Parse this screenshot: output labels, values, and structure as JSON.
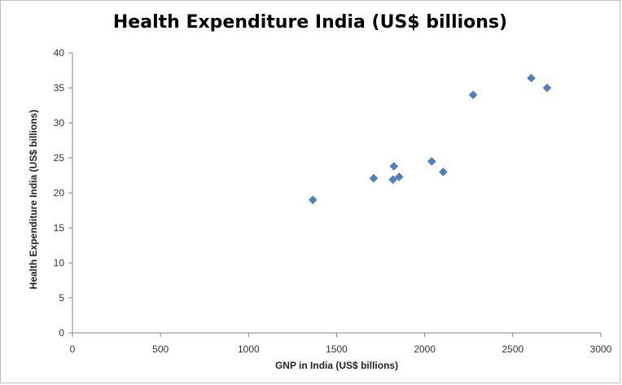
{
  "chart_data": {
    "type": "scatter",
    "title": "Health Expenditure India (US$ billions)",
    "xlabel": "GNP in India (US$ billions)",
    "ylabel": "Health Expenditure India (US$ billions)",
    "xlim": [
      0,
      3000
    ],
    "ylim": [
      0,
      40
    ],
    "xticks": [
      "0",
      "500",
      "1000",
      "1500",
      "2000",
      "2500",
      "3000"
    ],
    "yticks": [
      "0",
      "5",
      "10",
      "15",
      "20",
      "25",
      "30",
      "35",
      "40"
    ],
    "grid": false,
    "legend": "none",
    "marker": "diamond",
    "color": "#4f81bd",
    "points": [
      {
        "x": 1365,
        "y": 19.0
      },
      {
        "x": 1710,
        "y": 22.1
      },
      {
        "x": 1820,
        "y": 21.9
      },
      {
        "x": 1825,
        "y": 23.8
      },
      {
        "x": 1855,
        "y": 22.3
      },
      {
        "x": 2040,
        "y": 24.5
      },
      {
        "x": 2105,
        "y": 23.0
      },
      {
        "x": 2275,
        "y": 34.0
      },
      {
        "x": 2605,
        "y": 36.4
      },
      {
        "x": 2695,
        "y": 35.0
      }
    ]
  }
}
